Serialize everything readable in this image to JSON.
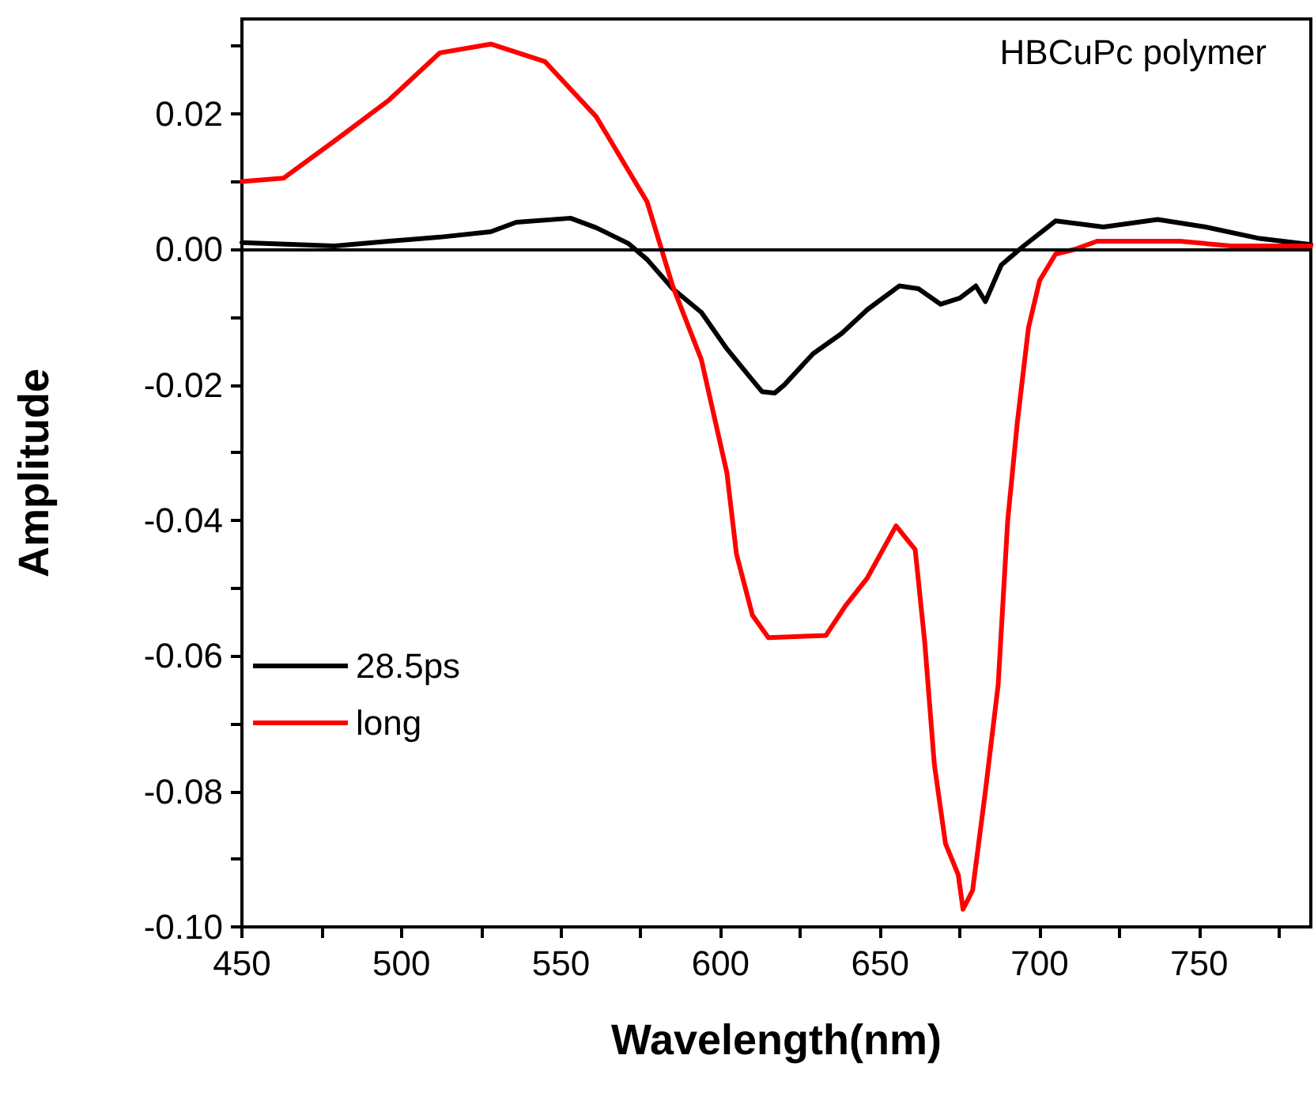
{
  "chart_data": {
    "type": "line",
    "xlabel": "Wavelength(nm)",
    "ylabel": "Amplitude",
    "annotations": [
      "HBCuPc polymer"
    ],
    "xlim": [
      450,
      785
    ],
    "ylim": [
      -0.1,
      0.034
    ],
    "xticks": [
      450,
      {
        "value": 475,
        "label": null
      },
      500,
      {
        "value": 525,
        "label": null
      },
      550,
      {
        "value": 575,
        "label": null
      },
      600,
      {
        "value": 625,
        "label": null
      },
      650,
      {
        "value": 675,
        "label": null
      },
      700,
      {
        "value": 725,
        "label": null
      },
      750,
      {
        "value": 775,
        "label": null
      }
    ],
    "yticks": [
      {
        "value": -0.1,
        "label": "-0.10"
      },
      {
        "value": -0.09,
        "label": null
      },
      -0.08,
      {
        "value": -0.07,
        "label": null
      },
      -0.06,
      {
        "value": -0.05,
        "label": null
      },
      -0.04,
      {
        "value": -0.03,
        "label": null
      },
      -0.02,
      {
        "value": -0.01,
        "label": null
      },
      {
        "value": 0,
        "label": "0.00"
      },
      {
        "value": 0.01,
        "label": null
      },
      0.02,
      {
        "value": 0.03,
        "label": null
      }
    ],
    "grid": false,
    "legend": "left",
    "marker": "none",
    "line_style": "solid",
    "ref_lines": [
      {
        "axis": "y",
        "value": 0,
        "color": "#000000"
      }
    ],
    "series": [
      {
        "name": "28.5ps",
        "color": "#000000",
        "x": [
          450,
          479,
          496,
          512,
          528,
          536,
          553,
          561,
          571,
          577,
          585,
          594,
          602,
          610,
          613,
          617,
          620,
          629,
          638,
          646,
          656,
          662,
          669,
          675,
          680,
          683,
          688,
          695,
          705,
          720,
          737,
          752,
          769,
          785
        ],
        "values": [
          0.001,
          0.0005,
          0.0012,
          0.0018,
          0.0026,
          0.004,
          0.0046,
          0.0032,
          0.0009,
          -0.0015,
          -0.0058,
          -0.0093,
          -0.0147,
          -0.0193,
          -0.021,
          -0.0212,
          -0.02,
          -0.0154,
          -0.0124,
          -0.0089,
          -0.0054,
          -0.0058,
          -0.0081,
          -0.0072,
          -0.0054,
          -0.0077,
          -0.0023,
          0.0005,
          0.0042,
          0.0033,
          0.0044,
          0.0033,
          0.0016,
          0.0007
        ]
      },
      {
        "name": "long",
        "color": "#ff0000",
        "x": [
          450,
          463,
          479,
          496,
          512,
          528,
          545,
          561,
          577,
          585,
          594,
          602,
          605,
          610,
          615,
          633,
          639,
          646,
          655,
          661,
          664,
          667,
          670.5,
          674.5,
          676,
          679,
          683,
          687,
          690,
          693,
          696.5,
          700,
          705,
          711,
          718,
          744,
          760,
          785
        ],
        "values": [
          0.01,
          0.0105,
          0.016,
          0.022,
          0.029,
          0.0303,
          0.0277,
          0.0196,
          0.007,
          -0.0054,
          -0.0163,
          -0.033,
          -0.045,
          -0.054,
          -0.0573,
          -0.057,
          -0.0527,
          -0.0485,
          -0.0408,
          -0.0443,
          -0.058,
          -0.076,
          -0.0877,
          -0.0923,
          -0.0974,
          -0.0946,
          -0.08,
          -0.0643,
          -0.04,
          -0.0256,
          -0.0116,
          -0.0046,
          -0.0007,
          0,
          0.0012,
          0.0012,
          0.0005,
          0.0005
        ]
      }
    ]
  }
}
